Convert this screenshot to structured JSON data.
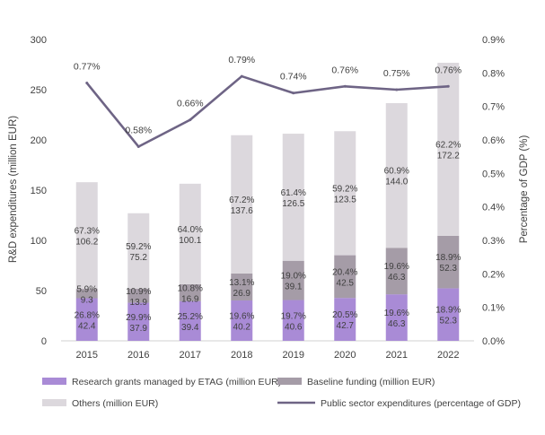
{
  "chart_data": {
    "type": "bar",
    "categories": [
      "2015",
      "2016",
      "2017",
      "2018",
      "2019",
      "2020",
      "2021",
      "2022"
    ],
    "ylabel": "R&D expenditures (million EUR)",
    "y2label": "Percentage of GDP (%)",
    "ylim": [
      0,
      300
    ],
    "y2lim": [
      0,
      0.9
    ],
    "yticks": [
      "0",
      "50",
      "100",
      "150",
      "200",
      "250",
      "300"
    ],
    "y2ticks": [
      "0.0%",
      "0.1%",
      "0.2%",
      "0.3%",
      "0.4%",
      "0.5%",
      "0.6%",
      "0.7%",
      "0.8%",
      "0.9%"
    ],
    "grid": false,
    "legend_position": "bottom",
    "stacked": true,
    "series": [
      {
        "name": "Research grants managed by ETAG (million EUR)",
        "kind": "bar",
        "color": "#a98bd6",
        "values": [
          42.4,
          37.9,
          39.4,
          40.2,
          40.6,
          42.7,
          46.3,
          52.3
        ],
        "share_labels": [
          "26.8%",
          "29.9%",
          "25.2%",
          "19.6%",
          "19.7%",
          "20.5%",
          "19.6%",
          "18.9%"
        ],
        "value_labels": [
          "42.4",
          "37.9",
          "39.4",
          "40.2",
          "40.6",
          "42.7",
          "46.3",
          "52.3"
        ]
      },
      {
        "name": "Baseline funding (million EUR)",
        "kind": "bar",
        "color": "#a59ca7",
        "values": [
          9.3,
          13.9,
          16.9,
          26.9,
          39.1,
          42.5,
          46.3,
          52.3
        ],
        "share_labels": [
          "5.9%",
          "10.9%",
          "10.8%",
          "13.1%",
          "19.0%",
          "20.4%",
          "19.6%",
          "18.9%"
        ],
        "value_labels": [
          "9.3",
          "13.9",
          "16.9",
          "26.9",
          "39.1",
          "42.5",
          "46.3",
          "52.3"
        ]
      },
      {
        "name": "Others (million EUR)",
        "kind": "bar",
        "color": "#dcd8dd",
        "values": [
          106.2,
          75.2,
          100.1,
          137.6,
          126.5,
          123.5,
          144.0,
          172.2
        ],
        "share_labels": [
          "67.3%",
          "59.2%",
          "64.0%",
          "67.2%",
          "61.4%",
          "59.2%",
          "60.9%",
          "62.2%"
        ],
        "value_labels": [
          "106.2",
          "75.2",
          "100.1",
          "137.6",
          "126.5",
          "123.5",
          "144.0",
          "172.2"
        ]
      },
      {
        "name": "Public sector expenditures (percentage of GDP)",
        "kind": "line",
        "axis": "y2",
        "color": "#6e6485",
        "values": [
          0.77,
          0.58,
          0.66,
          0.79,
          0.74,
          0.76,
          0.75,
          0.76
        ],
        "value_labels": [
          "0.77%",
          "0.58%",
          "0.66%",
          "0.79%",
          "0.74%",
          "0.76%",
          "0.75%",
          "0.76%"
        ]
      }
    ]
  }
}
